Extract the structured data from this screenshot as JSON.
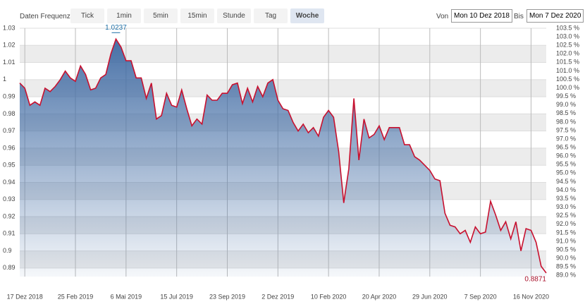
{
  "toolbar": {
    "label": "Daten Frequenz",
    "buttons": [
      "Tick",
      "1min",
      "5min",
      "15min",
      "Stunde",
      "Tag",
      "Woche"
    ],
    "selected": 6,
    "from_label": "Von",
    "from": "Mon 10 Dez 2018",
    "to_label": "Bis",
    "to": "Mon 7 Dez 2020"
  },
  "chart_data": {
    "type": "area",
    "color": "#c8102e",
    "fill": "#3f6aa3",
    "grid": true,
    "categories": [
      null,
      "17 Dez 2018",
      null,
      null,
      null,
      null,
      null,
      null,
      null,
      null,
      null,
      "25 Feb 2019",
      null,
      null,
      null,
      null,
      null,
      null,
      null,
      null,
      null,
      "6 Mai 2019",
      null,
      null,
      null,
      null,
      null,
      null,
      null,
      null,
      null,
      "15 Jul 2019",
      null,
      null,
      null,
      null,
      null,
      null,
      null,
      null,
      null,
      "23 Sep 2019",
      null,
      null,
      null,
      null,
      null,
      null,
      null,
      null,
      null,
      "2 Dez 2019",
      null,
      null,
      null,
      null,
      null,
      null,
      null,
      null,
      null,
      "10 Feb 2020",
      null,
      null,
      null,
      null,
      null,
      null,
      null,
      null,
      null,
      "20 Apr 2020",
      null,
      null,
      null,
      null,
      null,
      null,
      null,
      null,
      null,
      "29 Jun 2020",
      null,
      null,
      null,
      null,
      null,
      null,
      null,
      null,
      null,
      "7 Sep 2020",
      null,
      null,
      null,
      null,
      null,
      null,
      null,
      null,
      null,
      "16 Nov 2020",
      null,
      null,
      null
    ],
    "values": [
      0.998,
      0.995,
      0.985,
      0.987,
      0.985,
      0.995,
      0.993,
      0.996,
      1.0,
      1.005,
      1.001,
      0.999,
      1.008,
      1.003,
      0.994,
      0.995,
      1.001,
      1.003,
      1.015,
      1.0237,
      1.019,
      1.011,
      1.011,
      1.001,
      1.001,
      0.989,
      0.998,
      0.977,
      0.979,
      0.992,
      0.985,
      0.984,
      0.994,
      0.983,
      0.973,
      0.977,
      0.974,
      0.991,
      0.988,
      0.988,
      0.992,
      0.992,
      0.997,
      0.998,
      0.986,
      0.995,
      0.987,
      0.996,
      0.99,
      0.998,
      1.0,
      0.988,
      0.983,
      0.982,
      0.975,
      0.97,
      0.974,
      0.969,
      0.972,
      0.967,
      0.978,
      0.982,
      0.978,
      0.958,
      0.928,
      0.948,
      0.989,
      0.953,
      0.977,
      0.966,
      0.968,
      0.973,
      0.965,
      0.972,
      0.972,
      0.972,
      0.962,
      0.962,
      0.955,
      0.953,
      0.95,
      0.947,
      0.942,
      0.941,
      0.922,
      0.915,
      0.914,
      0.91,
      0.912,
      0.905,
      0.914,
      0.91,
      0.911,
      0.929,
      0.921,
      0.912,
      0.917,
      0.907,
      0.917,
      0.9,
      0.913,
      0.912,
      0.905,
      0.891,
      0.8871
    ],
    "value_labels": [
      null,
      null,
      null,
      null,
      null,
      null,
      null,
      null,
      null,
      null,
      null,
      null,
      null,
      null,
      null,
      null,
      null,
      null,
      null,
      "1.0237",
      null,
      null,
      null,
      null,
      null,
      null,
      null,
      null,
      null,
      null,
      null,
      null,
      null,
      null,
      null,
      null,
      null,
      null,
      null,
      null,
      null,
      null,
      null,
      null,
      null,
      null,
      null,
      null,
      null,
      null,
      null,
      null,
      null,
      null,
      null,
      null,
      null,
      null,
      null,
      null,
      null,
      null,
      null,
      null,
      null,
      null,
      null,
      null,
      null,
      null,
      null,
      null,
      null,
      null,
      null,
      null,
      null,
      null,
      null,
      null,
      null,
      null,
      null,
      null,
      null,
      null,
      null,
      null,
      null,
      null,
      null,
      null,
      null,
      null,
      null,
      null,
      null,
      null,
      null,
      null,
      null,
      null,
      null,
      null,
      "0.8871"
    ],
    "ylim": [
      0.885,
      1.03
    ],
    "yticks": [
      0.89,
      0.9,
      0.91,
      0.92,
      0.93,
      0.94,
      0.95,
      0.96,
      0.97,
      0.98,
      0.99,
      1,
      1.01,
      1.02,
      1.03
    ],
    "y2lim": [
      88.93,
      103.5
    ],
    "y2ticks": [
      {
        "value": 89.0,
        "label": "89.0 %"
      },
      {
        "value": 89.5,
        "label": "89.5 %"
      },
      {
        "value": 90.0,
        "label": "90.0 %"
      },
      {
        "value": 90.5,
        "label": "90.5 %"
      },
      {
        "value": 91.0,
        "label": "91.0 %"
      },
      {
        "value": 91.5,
        "label": "91.5 %"
      },
      {
        "value": 92.0,
        "label": "92.0 %"
      },
      {
        "value": 92.5,
        "label": "92.5 %"
      },
      {
        "value": 93.0,
        "label": "93.0 %"
      },
      {
        "value": 93.5,
        "label": "93.5 %"
      },
      {
        "value": 94.0,
        "label": "94.0 %"
      },
      {
        "value": 94.5,
        "label": "94.5 %"
      },
      {
        "value": 95.0,
        "label": "95.0 %"
      },
      {
        "value": 95.5,
        "label": "95.5 %"
      },
      {
        "value": 96.0,
        "label": "96.0 %"
      },
      {
        "value": 96.5,
        "label": "96.5 %"
      },
      {
        "value": 97.0,
        "label": "97.0 %"
      },
      {
        "value": 97.5,
        "label": "97.5 %"
      },
      {
        "value": 98.0,
        "label": "98.0 %"
      },
      {
        "value": 98.5,
        "label": "98.5 %"
      },
      {
        "value": 99.0,
        "label": "99.0 %"
      },
      {
        "value": 99.5,
        "label": "99.5 %"
      },
      {
        "value": 100.0,
        "label": "100.0 %"
      },
      {
        "value": 100.5,
        "label": "100.5 %"
      },
      {
        "value": 101.0,
        "label": "101.0 %"
      },
      {
        "value": 101.5,
        "label": "101.5 %"
      },
      {
        "value": 102.0,
        "label": "102.0 %"
      },
      {
        "value": 102.5,
        "label": "102.5 %"
      },
      {
        "value": 103.0,
        "label": "103.0 %"
      },
      {
        "value": 103.5,
        "label": "103.5 %"
      }
    ]
  }
}
